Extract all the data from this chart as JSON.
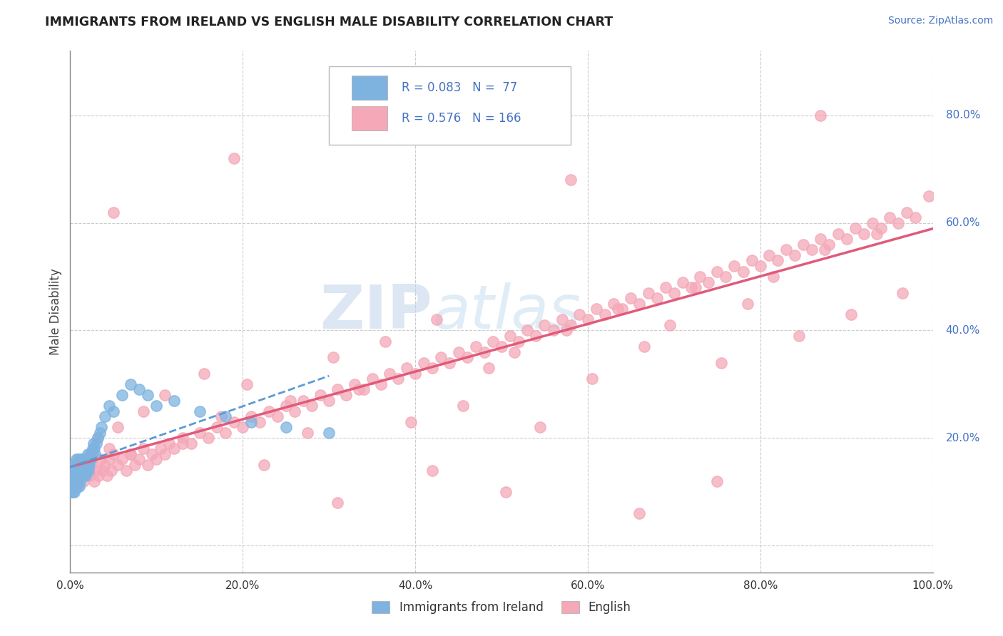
{
  "title": "IMMIGRANTS FROM IRELAND VS ENGLISH MALE DISABILITY CORRELATION CHART",
  "source_text": "Source: ZipAtlas.com",
  "ylabel": "Male Disability",
  "legend_labels": [
    "Immigrants from Ireland",
    "English"
  ],
  "r_ireland": 0.083,
  "n_ireland": 77,
  "r_english": 0.576,
  "n_english": 166,
  "color_ireland": "#7eb3e0",
  "color_english": "#f4a8b8",
  "trendline_ireland_color": "#5b9bd5",
  "trendline_english_color": "#e05a7a",
  "background_color": "#ffffff",
  "watermark_zip": "#b8cfe8",
  "watermark_atlas": "#c8ddf0",
  "xlim": [
    0.0,
    1.0
  ],
  "ylim": [
    -0.05,
    0.92
  ],
  "ytick_values": [
    0.0,
    0.2,
    0.4,
    0.6,
    0.8
  ],
  "xtick_values": [
    0.0,
    0.2,
    0.4,
    0.6,
    0.8,
    1.0
  ],
  "ireland_x": [
    0.001,
    0.001,
    0.002,
    0.002,
    0.003,
    0.003,
    0.003,
    0.004,
    0.004,
    0.004,
    0.005,
    0.005,
    0.005,
    0.006,
    0.006,
    0.006,
    0.007,
    0.007,
    0.007,
    0.008,
    0.008,
    0.008,
    0.009,
    0.009,
    0.009,
    0.01,
    0.01,
    0.01,
    0.011,
    0.011,
    0.011,
    0.012,
    0.012,
    0.013,
    0.013,
    0.014,
    0.014,
    0.015,
    0.015,
    0.016,
    0.016,
    0.017,
    0.017,
    0.018,
    0.018,
    0.019,
    0.019,
    0.02,
    0.02,
    0.021,
    0.022,
    0.022,
    0.023,
    0.024,
    0.025,
    0.026,
    0.027,
    0.028,
    0.029,
    0.03,
    0.032,
    0.034,
    0.036,
    0.04,
    0.045,
    0.05,
    0.06,
    0.07,
    0.08,
    0.09,
    0.1,
    0.12,
    0.15,
    0.18,
    0.21,
    0.25,
    0.3
  ],
  "ireland_y": [
    0.12,
    0.1,
    0.13,
    0.11,
    0.14,
    0.12,
    0.1,
    0.13,
    0.11,
    0.15,
    0.12,
    0.14,
    0.1,
    0.13,
    0.15,
    0.11,
    0.14,
    0.12,
    0.16,
    0.13,
    0.11,
    0.15,
    0.14,
    0.12,
    0.16,
    0.13,
    0.15,
    0.11,
    0.14,
    0.16,
    0.12,
    0.15,
    0.13,
    0.14,
    0.16,
    0.13,
    0.15,
    0.14,
    0.16,
    0.15,
    0.13,
    0.14,
    0.16,
    0.15,
    0.13,
    0.14,
    0.16,
    0.15,
    0.17,
    0.14,
    0.16,
    0.15,
    0.17,
    0.16,
    0.17,
    0.18,
    0.19,
    0.18,
    0.17,
    0.19,
    0.2,
    0.21,
    0.22,
    0.24,
    0.26,
    0.25,
    0.28,
    0.3,
    0.29,
    0.28,
    0.26,
    0.27,
    0.25,
    0.24,
    0.23,
    0.22,
    0.21
  ],
  "english_x": [
    0.002,
    0.005,
    0.008,
    0.01,
    0.012,
    0.015,
    0.018,
    0.02,
    0.023,
    0.025,
    0.028,
    0.03,
    0.033,
    0.035,
    0.038,
    0.04,
    0.043,
    0.045,
    0.048,
    0.05,
    0.055,
    0.06,
    0.065,
    0.07,
    0.075,
    0.08,
    0.085,
    0.09,
    0.095,
    0.1,
    0.105,
    0.11,
    0.115,
    0.12,
    0.13,
    0.14,
    0.15,
    0.16,
    0.17,
    0.18,
    0.19,
    0.2,
    0.21,
    0.22,
    0.23,
    0.24,
    0.25,
    0.26,
    0.27,
    0.28,
    0.29,
    0.3,
    0.31,
    0.32,
    0.33,
    0.34,
    0.35,
    0.36,
    0.37,
    0.38,
    0.39,
    0.4,
    0.41,
    0.42,
    0.43,
    0.44,
    0.45,
    0.46,
    0.47,
    0.48,
    0.49,
    0.5,
    0.51,
    0.52,
    0.53,
    0.54,
    0.55,
    0.56,
    0.57,
    0.58,
    0.59,
    0.6,
    0.61,
    0.62,
    0.63,
    0.64,
    0.65,
    0.66,
    0.67,
    0.68,
    0.69,
    0.7,
    0.71,
    0.72,
    0.73,
    0.74,
    0.75,
    0.76,
    0.77,
    0.78,
    0.79,
    0.8,
    0.81,
    0.82,
    0.83,
    0.84,
    0.85,
    0.86,
    0.87,
    0.88,
    0.89,
    0.9,
    0.91,
    0.92,
    0.93,
    0.94,
    0.95,
    0.96,
    0.97,
    0.98,
    0.032,
    0.045,
    0.055,
    0.07,
    0.085,
    0.11,
    0.13,
    0.155,
    0.175,
    0.205,
    0.225,
    0.255,
    0.275,
    0.305,
    0.335,
    0.365,
    0.395,
    0.425,
    0.455,
    0.485,
    0.515,
    0.545,
    0.575,
    0.605,
    0.635,
    0.665,
    0.695,
    0.725,
    0.755,
    0.785,
    0.815,
    0.845,
    0.875,
    0.905,
    0.935,
    0.965,
    0.995,
    0.505,
    0.31,
    0.66,
    0.42,
    0.75,
    0.19,
    0.58,
    0.87,
    0.05
  ],
  "english_y": [
    0.12,
    0.14,
    0.11,
    0.13,
    0.15,
    0.12,
    0.14,
    0.16,
    0.13,
    0.15,
    0.12,
    0.14,
    0.13,
    0.16,
    0.14,
    0.15,
    0.13,
    0.16,
    0.14,
    0.17,
    0.15,
    0.16,
    0.14,
    0.17,
    0.15,
    0.16,
    0.18,
    0.15,
    0.17,
    0.16,
    0.18,
    0.17,
    0.19,
    0.18,
    0.2,
    0.19,
    0.21,
    0.2,
    0.22,
    0.21,
    0.23,
    0.22,
    0.24,
    0.23,
    0.25,
    0.24,
    0.26,
    0.25,
    0.27,
    0.26,
    0.28,
    0.27,
    0.29,
    0.28,
    0.3,
    0.29,
    0.31,
    0.3,
    0.32,
    0.31,
    0.33,
    0.32,
    0.34,
    0.33,
    0.35,
    0.34,
    0.36,
    0.35,
    0.37,
    0.36,
    0.38,
    0.37,
    0.39,
    0.38,
    0.4,
    0.39,
    0.41,
    0.4,
    0.42,
    0.41,
    0.43,
    0.42,
    0.44,
    0.43,
    0.45,
    0.44,
    0.46,
    0.45,
    0.47,
    0.46,
    0.48,
    0.47,
    0.49,
    0.48,
    0.5,
    0.49,
    0.51,
    0.5,
    0.52,
    0.51,
    0.53,
    0.52,
    0.54,
    0.53,
    0.55,
    0.54,
    0.56,
    0.55,
    0.57,
    0.56,
    0.58,
    0.57,
    0.59,
    0.58,
    0.6,
    0.59,
    0.61,
    0.6,
    0.62,
    0.61,
    0.2,
    0.18,
    0.22,
    0.17,
    0.25,
    0.28,
    0.19,
    0.32,
    0.24,
    0.3,
    0.15,
    0.27,
    0.21,
    0.35,
    0.29,
    0.38,
    0.23,
    0.42,
    0.26,
    0.33,
    0.36,
    0.22,
    0.4,
    0.31,
    0.44,
    0.37,
    0.41,
    0.48,
    0.34,
    0.45,
    0.5,
    0.39,
    0.55,
    0.43,
    0.58,
    0.47,
    0.65,
    0.1,
    0.08,
    0.06,
    0.14,
    0.12,
    0.72,
    0.68,
    0.8,
    0.62
  ]
}
